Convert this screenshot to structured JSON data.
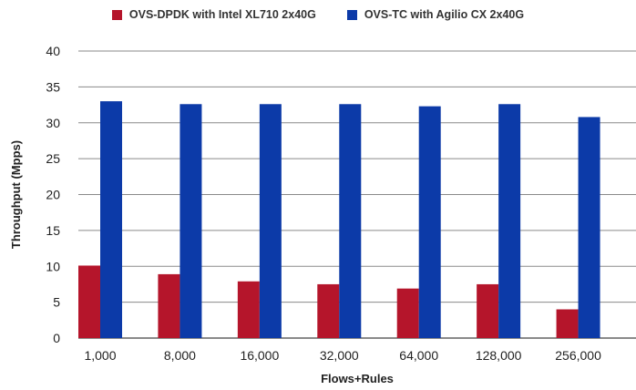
{
  "chart_data": {
    "type": "bar",
    "title": "",
    "xlabel": "Flows+Rules",
    "ylabel": "Throughput (Mpps)",
    "categories": [
      "1,000",
      "8,000",
      "16,000",
      "32,000",
      "64,000",
      "128,000",
      "256,000"
    ],
    "series": [
      {
        "name": "OVS-DPDK with Intel XL710 2x40G",
        "color": "#b5152b",
        "values": [
          10.1,
          8.9,
          7.9,
          7.5,
          6.9,
          7.5,
          4.0
        ]
      },
      {
        "name": "OVS-TC with Agilio CX 2x40G",
        "color": "#0c3aa8",
        "values": [
          33.0,
          32.6,
          32.6,
          32.6,
          32.3,
          32.6,
          30.8
        ]
      }
    ],
    "ylim": [
      0,
      40
    ],
    "yticks": [
      0,
      5,
      10,
      15,
      20,
      25,
      30,
      35,
      40
    ],
    "grid": true,
    "legend_position": "top-center"
  }
}
